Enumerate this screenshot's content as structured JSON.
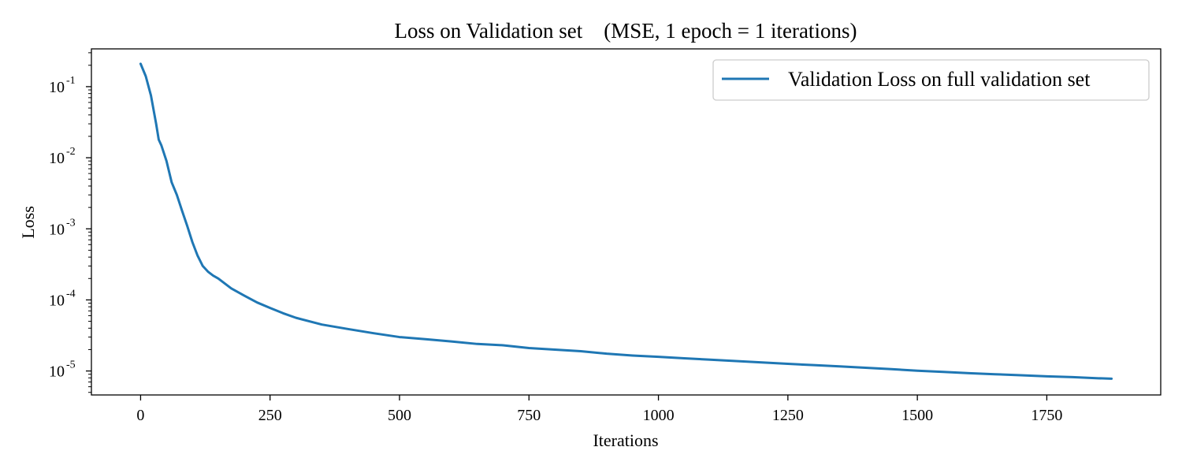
{
  "chart_data": {
    "type": "line",
    "title": "Loss on Validation set    (MSE, 1 epoch = 1 iterations)",
    "xlabel": "Iterations",
    "ylabel": "Loss",
    "xlim": [
      -95,
      1970
    ],
    "ylim": [
      4.6e-06,
      0.34
    ],
    "yscale": "log",
    "grid": false,
    "legend_position": "top-right",
    "x_ticks": [
      {
        "value": 0,
        "label": "0"
      },
      {
        "value": 250,
        "label": "250"
      },
      {
        "value": 500,
        "label": "500"
      },
      {
        "value": 750,
        "label": "750"
      },
      {
        "value": 1000,
        "label": "1000"
      },
      {
        "value": 1250,
        "label": "1250"
      },
      {
        "value": 1500,
        "label": "1500"
      },
      {
        "value": 1750,
        "label": "1750"
      }
    ],
    "y_ticks": [
      {
        "value": 0.1,
        "base": "10",
        "exp": "-1"
      },
      {
        "value": 0.01,
        "base": "10",
        "exp": "-2"
      },
      {
        "value": 0.001,
        "base": "10",
        "exp": "-3"
      },
      {
        "value": 0.0001,
        "base": "10",
        "exp": "-4"
      },
      {
        "value": 1e-05,
        "base": "10",
        "exp": "-5"
      }
    ],
    "series": [
      {
        "name": "Validation Loss on full validation set",
        "color": "#1f77b4",
        "x": [
          0,
          10,
          20,
          30,
          35,
          40,
          50,
          60,
          70,
          80,
          90,
          100,
          110,
          120,
          130,
          140,
          150,
          175,
          200,
          225,
          250,
          275,
          300,
          350,
          400,
          450,
          500,
          550,
          600,
          650,
          700,
          750,
          800,
          850,
          900,
          950,
          1000,
          1050,
          1100,
          1150,
          1200,
          1250,
          1300,
          1350,
          1400,
          1450,
          1500,
          1550,
          1600,
          1650,
          1700,
          1750,
          1800,
          1850,
          1875
        ],
        "y": [
          0.21,
          0.14,
          0.075,
          0.03,
          0.018,
          0.015,
          0.009,
          0.0045,
          0.003,
          0.0018,
          0.0011,
          0.00065,
          0.00042,
          0.0003,
          0.00025,
          0.00022,
          0.0002,
          0.000145,
          0.000115,
          9.2e-05,
          7.7e-05,
          6.5e-05,
          5.6e-05,
          4.5e-05,
          3.9e-05,
          3.4e-05,
          3e-05,
          2.8e-05,
          2.6e-05,
          2.4e-05,
          2.3e-05,
          2.1e-05,
          2e-05,
          1.9e-05,
          1.75e-05,
          1.65e-05,
          1.58e-05,
          1.51e-05,
          1.44e-05,
          1.38e-05,
          1.32e-05,
          1.26e-05,
          1.21e-05,
          1.16e-05,
          1.11e-05,
          1.06e-05,
          1.01e-05,
          9.7e-06,
          9.3e-06,
          9e-06,
          8.7e-06,
          8.4e-06,
          8.2e-06,
          7.9e-06,
          7.8e-06
        ]
      }
    ]
  }
}
